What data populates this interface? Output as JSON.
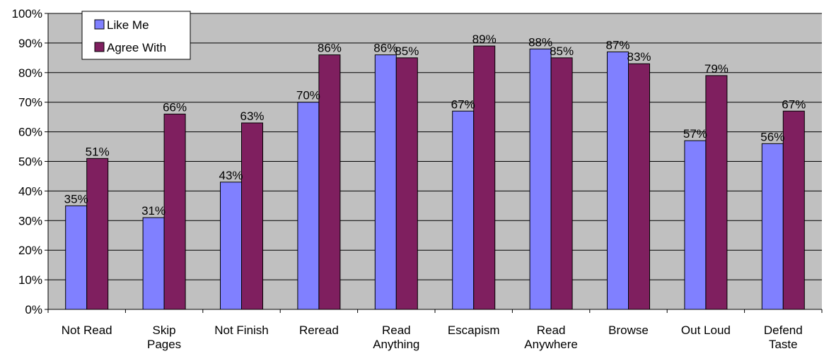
{
  "chart_data": {
    "type": "bar",
    "categories": [
      [
        "Not Read"
      ],
      [
        "Skip",
        "Pages"
      ],
      [
        "Not Finish"
      ],
      [
        "Reread"
      ],
      [
        "Read",
        "Anything"
      ],
      [
        "Escapism"
      ],
      [
        "Read",
        "Anywhere"
      ],
      [
        "Browse"
      ],
      [
        "Out Loud"
      ],
      [
        "Defend",
        "Taste"
      ]
    ],
    "series": [
      {
        "name": "Like Me",
        "color": "#8080ff",
        "values": [
          35,
          31,
          43,
          70,
          86,
          67,
          88,
          87,
          57,
          56
        ]
      },
      {
        "name": "Agree With",
        "color": "#7f1f5f",
        "values": [
          51,
          66,
          63,
          86,
          85,
          89,
          85,
          83,
          79,
          67
        ]
      }
    ],
    "value_suffix": "%",
    "ylim": [
      0,
      100
    ],
    "y_ticks": [
      "0%",
      "10%",
      "20%",
      "30%",
      "40%",
      "50%",
      "60%",
      "70%",
      "80%",
      "90%",
      "100%"
    ],
    "plot_background": "#c0c0c0",
    "grid": true,
    "legend_position": "top-left",
    "data_labels": true
  }
}
